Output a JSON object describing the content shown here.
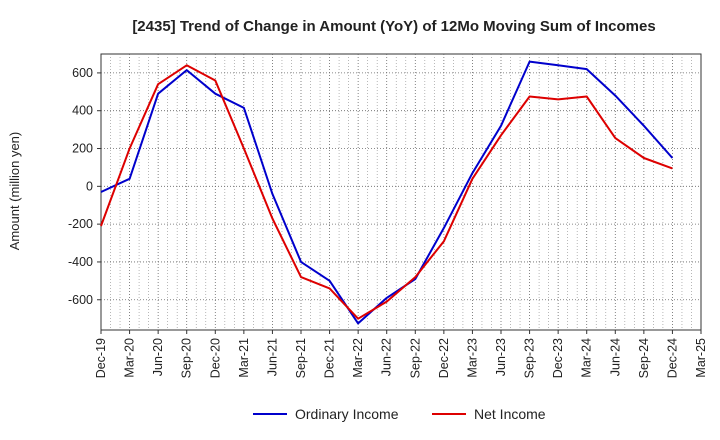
{
  "chart_data": {
    "type": "line",
    "title": "[2435]  Trend of Change in Amount (YoY) of 12Mo Moving Sum of Incomes",
    "xlabel": "",
    "ylabel": "Amount (million yen)",
    "x_ticks": [
      "Dec-19",
      "Mar-20",
      "Jun-20",
      "Sep-20",
      "Dec-20",
      "Mar-21",
      "Jun-21",
      "Sep-21",
      "Dec-21",
      "Mar-22",
      "Jun-22",
      "Sep-22",
      "Dec-22",
      "Mar-23",
      "Jun-23",
      "Sep-23",
      "Dec-23",
      "Mar-24",
      "Jun-24",
      "Sep-24",
      "Dec-24",
      "Mar-25"
    ],
    "ylim": [
      -760,
      700
    ],
    "y_ticks": [
      -600,
      -400,
      -200,
      0,
      200,
      400,
      600
    ],
    "grid": true,
    "legend_position": "bottom",
    "series": [
      {
        "name": "Ordinary Income",
        "color": "#0000cc",
        "values": [
          -30,
          40,
          490,
          615,
          490,
          415,
          -40,
          -400,
          -500,
          -725,
          -590,
          -490,
          -220,
          70,
          320,
          660,
          640,
          620,
          480,
          320,
          150
        ]
      },
      {
        "name": "Net Income",
        "color": "#dd0000",
        "values": [
          -210,
          200,
          540,
          640,
          560,
          200,
          -170,
          -480,
          -540,
          -700,
          -610,
          -480,
          -290,
          40,
          270,
          475,
          460,
          475,
          255,
          150,
          95
        ]
      }
    ]
  }
}
